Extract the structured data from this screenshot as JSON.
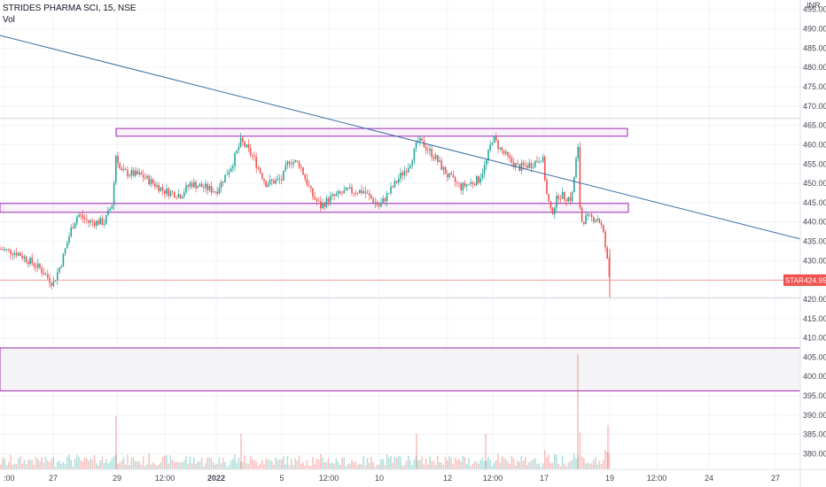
{
  "header": {
    "title": "STRIDES PHARMA SCI, 15, NSE",
    "volume_label": "Vol"
  },
  "price_axis": {
    "currency": "INR",
    "ticks": [
      "495.00",
      "490.00",
      "485.00",
      "480.00",
      "475.00",
      "470.00",
      "465.00",
      "460.00",
      "455.00",
      "450.00",
      "445.00",
      "440.00",
      "435.00",
      "430.00",
      "425.00",
      "420.00",
      "415.00",
      "410.00",
      "405.00",
      "400.00",
      "395.00",
      "390.00",
      "385.00",
      "380.00"
    ]
  },
  "last_price_badge": {
    "symbol": "STAR",
    "value": "424.95",
    "color": "#ef5350"
  },
  "time_axis": {
    "labels": [
      ":00",
      "27",
      "29",
      "12:00",
      "2022",
      "5",
      "12:00",
      "10",
      "12",
      "12:00",
      "17",
      "19",
      "12:00",
      "24",
      "27"
    ]
  },
  "colors": {
    "up": "#26a69a",
    "down": "#ef5350",
    "rectangle": "#9c27b0",
    "trendline": "#2962ff",
    "price_line": "#f4a0a0"
  },
  "chart_data": {
    "type": "candlestick",
    "title": "STRIDES PHARMA SCI, 15, NSE",
    "timeframe": "15",
    "exchange": "NSE",
    "currency": "INR",
    "last_price": 424.95,
    "ylim": [
      380,
      497
    ],
    "x_tick_labels": [
      ":00",
      "27",
      "29",
      "12:00",
      "2022",
      "5",
      "12:00",
      "10",
      "12",
      "12:00",
      "17",
      "19",
      "12:00",
      "24",
      "27"
    ],
    "price_path_keypoints": [
      {
        "at": ":00",
        "price": 433
      },
      {
        "at": "27",
        "price": 425
      },
      {
        "at": "29",
        "price": 448
      },
      {
        "at": "12:00",
        "price": 447
      },
      {
        "at": "2022",
        "price": 447
      },
      {
        "at": "5",
        "price": 451
      },
      {
        "at": "12:00",
        "price": 445
      },
      {
        "at": "10",
        "price": 446
      },
      {
        "at": "12",
        "price": 451
      },
      {
        "at": "12:00",
        "price": 462
      },
      {
        "at": "17",
        "price": 446
      },
      {
        "at": "19",
        "price": 424.95
      }
    ],
    "drawings": {
      "upper_resistance_zone": [
        462.2,
        464.2
      ],
      "middle_support_zone": [
        442.5,
        444.8
      ],
      "lower_zone": [
        396.3,
        407.4
      ],
      "descending_trendline": {
        "start_price": 488.3,
        "end_price": 435.6
      },
      "horizontal_lines": [
        466.8,
        420.4
      ]
    },
    "volume": {
      "label": "Vol"
    }
  }
}
